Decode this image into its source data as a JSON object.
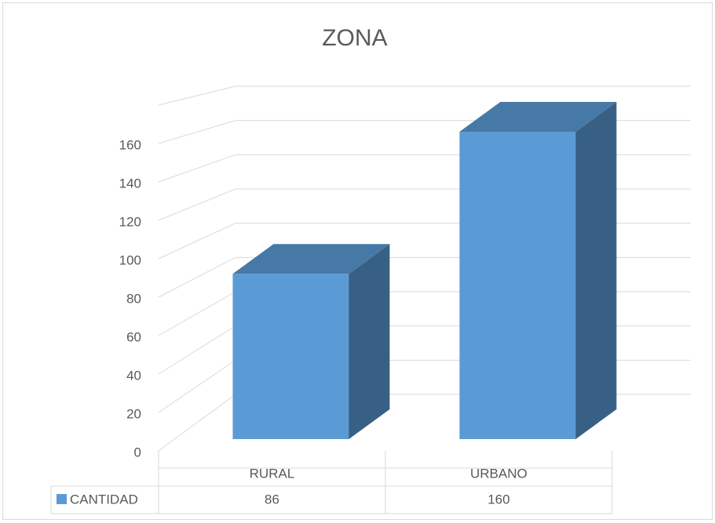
{
  "chart_data": {
    "type": "bar3d",
    "title": "ZONA",
    "categories": [
      "RURAL",
      "URBANO"
    ],
    "series": [
      {
        "name": "CANTIDAD",
        "color": "#5b9bd5",
        "values": [
          86,
          160
        ]
      }
    ],
    "ylim": [
      0,
      180
    ],
    "yticks": [
      0,
      20,
      40,
      60,
      80,
      100,
      120,
      140,
      160
    ],
    "grid": true,
    "legend": "table"
  }
}
